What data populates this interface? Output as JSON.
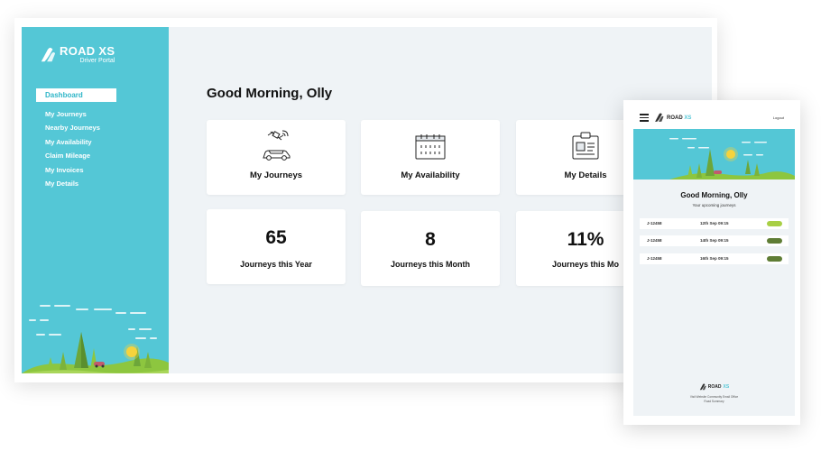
{
  "brand": {
    "name": "ROAD XS",
    "name_main": "ROAD",
    "name_accent": "XS",
    "subtitle": "Driver Portal"
  },
  "colors": {
    "primary": "#54c7d6",
    "background": "#eff3f6",
    "text": "#111111",
    "badge_light": "#a8cf45",
    "badge_dark": "#5f7d35"
  },
  "sidebar": {
    "active_item": "Dashboard",
    "items": [
      "My Journeys",
      "Nearby Journeys",
      "My Availability",
      "Claim Mileage",
      "My Invoices",
      "My Details"
    ]
  },
  "main": {
    "greeting": "Good Morning, Olly",
    "nav_cards": [
      {
        "icon": "car-satellite-icon",
        "label": "My Journeys"
      },
      {
        "icon": "calendar-icon",
        "label": "My Availability"
      },
      {
        "icon": "id-card-icon",
        "label": "My Details"
      }
    ],
    "stats": [
      {
        "value": "65",
        "label": "Journeys this Year"
      },
      {
        "value": "8",
        "label": "Journeys this Month"
      },
      {
        "value": "11%",
        "label": "Journeys this Mo"
      }
    ]
  },
  "mobile": {
    "header": {
      "logout": "Logout",
      "menu_icon": "hamburger-menu-icon"
    },
    "greeting": "Good Morning, Olly",
    "subtitle": "Your upcoming journeys",
    "journeys": [
      {
        "id": "J-12458",
        "date": "12th Sep 09:15",
        "badge_color": "#a8cf45"
      },
      {
        "id": "J-12458",
        "date": "14th Sep 09:15",
        "badge_color": "#5f7d35"
      },
      {
        "id": "J-12458",
        "date": "16th Sep 09:15",
        "badge_color": "#5f7d35"
      }
    ],
    "footer": {
      "line1": "Visit Website  Community  Email  Office",
      "line2": "Road Summary"
    }
  }
}
